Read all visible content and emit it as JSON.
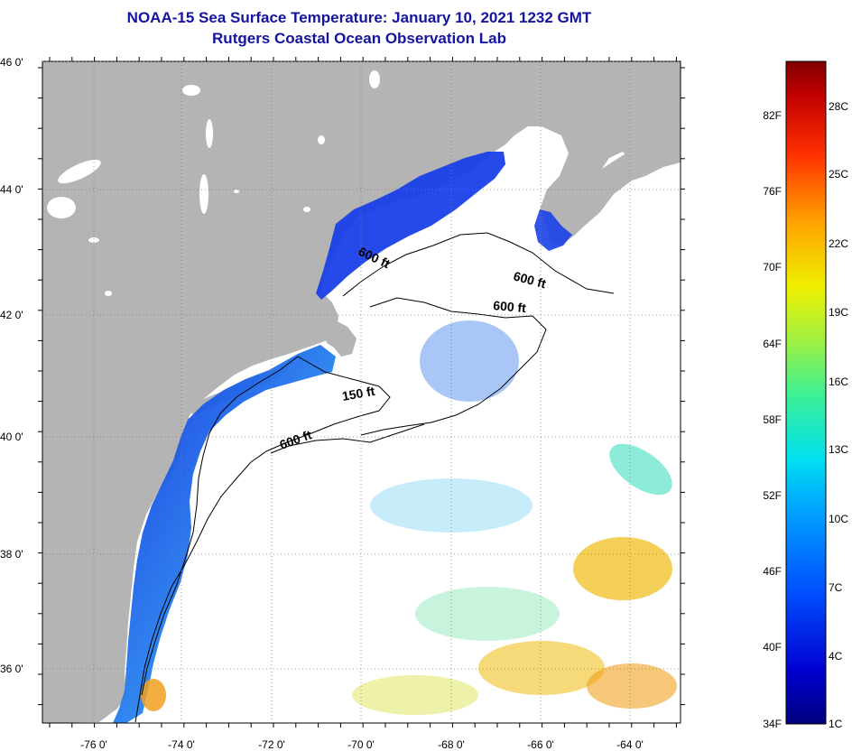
{
  "title": {
    "line1": "NOAA-15 Sea Surface Temperature:  January 10, 2021 1232 GMT",
    "line2": "Rutgers Coastal Ocean Observation Lab"
  },
  "map": {
    "lon_labels": [
      "-76 0'",
      "-74 0'",
      "-72 0'",
      "-70 0'",
      "-68 0'",
      "-66 0'",
      "-64 0'"
    ],
    "lat_labels": [
      "46 0'",
      "44 0'",
      "42 0'",
      "40 0'",
      "38 0'",
      "36 0'"
    ],
    "depth_labels": [
      "600 ft",
      "600 ft",
      "600 ft",
      "150 ft",
      "600 ft"
    ],
    "colors": {
      "land": "#b4b4b4",
      "ocean": "#ffffff",
      "contour": "#000000"
    }
  },
  "colorbar": {
    "fahrenheit": [
      "82F",
      "76F",
      "70F",
      "64F",
      "58F",
      "52F",
      "46F",
      "40F",
      "34F"
    ],
    "celsius": [
      "28C",
      "25C",
      "22C",
      "19C",
      "16C",
      "13C",
      "10C",
      "7C",
      "4C",
      "1C"
    ]
  }
}
